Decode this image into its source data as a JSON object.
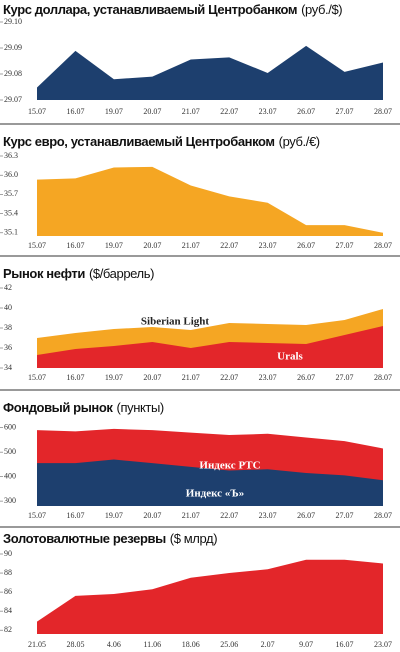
{
  "chart_data": [
    {
      "type": "area",
      "title": "Курс доллара, устанавливаемый Центробанком",
      "unit": "(руб./$)",
      "categories": [
        "15.07",
        "16.07",
        "19.07",
        "20.07",
        "21.07",
        "22.07",
        "23.07",
        "26.07",
        "27.07",
        "28.07"
      ],
      "values": [
        29.0748,
        29.0889,
        29.078,
        29.079,
        29.0856,
        29.0864,
        29.0804,
        29.0908,
        29.0808,
        29.0844
      ],
      "color": "#1d3f6e",
      "ylim": [
        29.07,
        29.1
      ],
      "yticks": [
        29.07,
        29.08,
        29.09,
        {
          "value": 29.1,
          "label": "29.10"
        }
      ]
    },
    {
      "type": "area",
      "title": "Курс евро, устанавливаемый Центробанком",
      "unit": "(руб./€)",
      "categories": [
        "15.07",
        "16.07",
        "19.07",
        "20.07",
        "21.07",
        "22.07",
        "23.07",
        "26.07",
        "27.07",
        "28.07"
      ],
      "values": [
        35.93,
        35.95,
        36.12,
        36.13,
        35.84,
        35.67,
        35.57,
        35.22,
        35.22,
        35.1
      ],
      "color": "#f5a623",
      "ylim": [
        35.05,
        36.3
      ],
      "yticks": [
        35.1,
        35.4,
        35.7,
        {
          "value": 36,
          "label": "36.0"
        },
        36.3
      ]
    },
    {
      "type": "area",
      "title": "Рынок нефти",
      "unit": "($/баррель)",
      "categories": [
        "15.07",
        "16.07",
        "19.07",
        "20.07",
        "21.07",
        "22.07",
        "23.07",
        "26.07",
        "27.07",
        "28.07"
      ],
      "series": [
        {
          "name": "Siberian Light",
          "color": "#f5a623",
          "values": [
            37.0,
            37.5,
            37.9,
            38.1,
            37.8,
            38.5,
            38.4,
            38.3,
            38.8,
            39.9
          ]
        },
        {
          "name": "Urals",
          "color": "#e3262a",
          "values": [
            35.3,
            35.9,
            36.2,
            36.6,
            36.0,
            36.6,
            36.5,
            36.4,
            37.3,
            38.2
          ]
        }
      ],
      "ylim": [
        34,
        42
      ],
      "yticks": [
        34,
        36,
        38,
        40,
        42
      ]
    },
    {
      "type": "area",
      "title": "Фондовый рынок",
      "unit": "(пункты)",
      "categories": [
        "15.07",
        "16.07",
        "19.07",
        "20.07",
        "21.07",
        "22.07",
        "23.07",
        "26.07",
        "27.07",
        "28.07"
      ],
      "series": [
        {
          "name": "Индекс РТС",
          "color": "#e3262a",
          "values": [
            590,
            585,
            595,
            590,
            580,
            570,
            575,
            560,
            545,
            515
          ]
        },
        {
          "name": "Индекс «Ъ»",
          "color": "#1d3f6e",
          "values": [
            455,
            455,
            470,
            455,
            440,
            425,
            430,
            415,
            405,
            385
          ]
        }
      ],
      "ylim": [
        280,
        615
      ],
      "yticks": [
        300,
        400,
        500,
        600
      ]
    },
    {
      "type": "area",
      "title": "Золотовалютные резервы",
      "unit": "($ млрд)",
      "categories": [
        "21.05",
        "28.05",
        "4.06",
        "11.06",
        "18.06",
        "25.06",
        "2.07",
        "9.07",
        "16.07",
        "23.07"
      ],
      "values": [
        82.9,
        85.6,
        85.8,
        86.3,
        87.5,
        88.0,
        88.4,
        89.4,
        89.4,
        89.0
      ],
      "color": "#e3262a",
      "ylim": [
        81.6,
        90
      ],
      "yticks": [
        82,
        84,
        86,
        88,
        90
      ]
    }
  ]
}
